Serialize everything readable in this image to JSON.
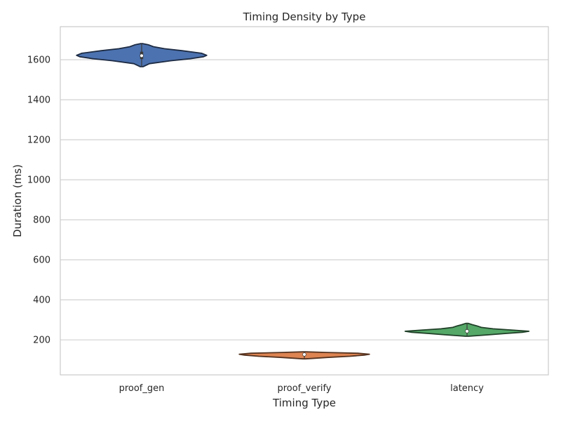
{
  "chart_data": {
    "type": "violin",
    "title": "Timing Density by Type",
    "xlabel": "Timing Type",
    "ylabel": "Duration (ms)",
    "categories": [
      "proof_gen",
      "proof_verify",
      "latency"
    ],
    "ylim": [
      25,
      1765
    ],
    "yticks": [
      200,
      400,
      600,
      800,
      1000,
      1200,
      1400,
      1600
    ],
    "grid": true,
    "series": [
      {
        "category": "proof_gen",
        "color": "#4c72b0",
        "min": 1565,
        "max": 1680,
        "median": 1620,
        "q1": 1603,
        "q3": 1640,
        "density": [
          [
            1565,
            0.02
          ],
          [
            1580,
            0.12
          ],
          [
            1595,
            0.45
          ],
          [
            1605,
            0.75
          ],
          [
            1615,
            0.95
          ],
          [
            1622,
            1.0
          ],
          [
            1632,
            0.92
          ],
          [
            1645,
            0.62
          ],
          [
            1655,
            0.35
          ],
          [
            1665,
            0.18
          ],
          [
            1675,
            0.1
          ],
          [
            1680,
            0.02
          ]
        ]
      },
      {
        "category": "proof_verify",
        "color": "#dd8452",
        "min": 105,
        "max": 140,
        "median": 127,
        "q1": 120,
        "q3": 132,
        "density": [
          [
            105,
            0.02
          ],
          [
            112,
            0.35
          ],
          [
            118,
            0.7
          ],
          [
            124,
            0.92
          ],
          [
            128,
            1.0
          ],
          [
            133,
            0.82
          ],
          [
            137,
            0.35
          ],
          [
            140,
            0.02
          ]
        ]
      },
      {
        "category": "latency",
        "color": "#55a868",
        "min": 218,
        "max": 282,
        "median": 243,
        "q1": 236,
        "q3": 252,
        "density": [
          [
            218,
            0.02
          ],
          [
            225,
            0.32
          ],
          [
            232,
            0.6
          ],
          [
            238,
            0.85
          ],
          [
            243,
            0.95
          ],
          [
            248,
            0.72
          ],
          [
            255,
            0.4
          ],
          [
            262,
            0.22
          ],
          [
            270,
            0.15
          ],
          [
            276,
            0.08
          ],
          [
            282,
            0.02
          ]
        ]
      }
    ]
  }
}
